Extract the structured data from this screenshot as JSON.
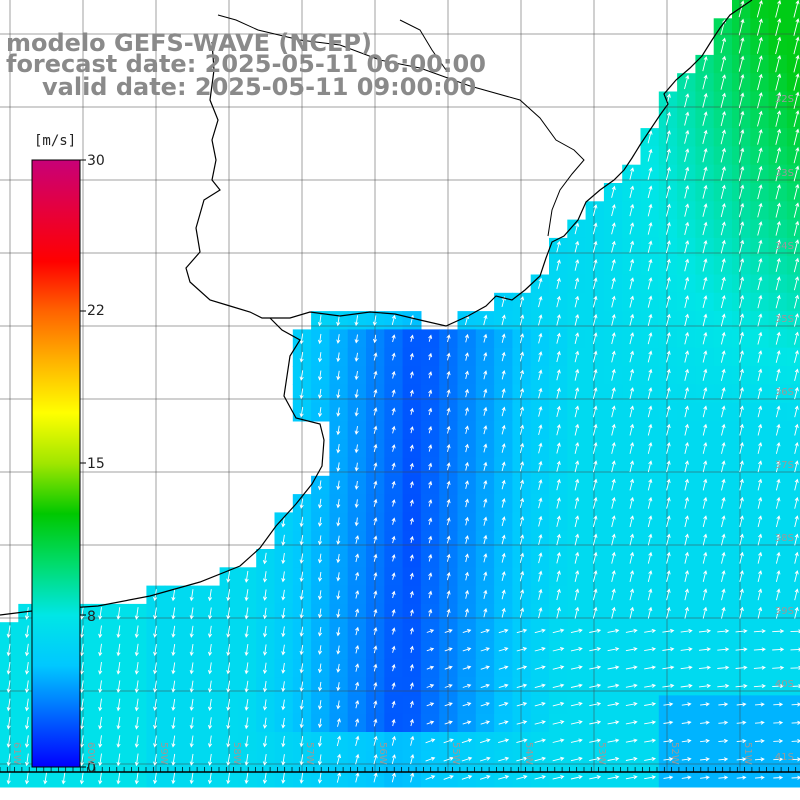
{
  "title": {
    "line1": "modelo GEFS-WAVE (NCEP)",
    "line2": "forecast date: 2025-05-11 06:00:00",
    "line3": "valid date: 2025-05-11 09:00:00"
  },
  "colorbar": {
    "unit": "[m/s]",
    "ticks": [
      "30",
      "22",
      "15",
      "8",
      "0"
    ],
    "tick_values": [
      30,
      22,
      15,
      8,
      0
    ],
    "stops": [
      "#0000ff",
      "#0064ff",
      "#00c8ff",
      "#00e6e6",
      "#00dc6e",
      "#00c800",
      "#a0e600",
      "#ffff00",
      "#ffb400",
      "#ff6400",
      "#ff0000",
      "#e6003c",
      "#c80078"
    ]
  },
  "lat_labels": [
    "32S",
    "33S",
    "34S",
    "35S",
    "36S",
    "37S",
    "38S",
    "39S",
    "40S",
    "41S"
  ],
  "lon_labels": [
    "61W",
    "60W",
    "59W",
    "58W",
    "57W",
    "56W",
    "55W",
    "54W",
    "53W",
    "52W",
    "51W"
  ],
  "chart_data": {
    "type": "heatmap",
    "variable": "wind speed",
    "unit": "m/s",
    "range": [
      0,
      30
    ],
    "region": "Rio de la Plata / southern Brazil coast",
    "typical_values": {
      "rio_de_la_plata_estuary": 2,
      "open_ocean_east": 7,
      "south_west_corner": 6
    }
  },
  "colors": {
    "land": "#ffffff",
    "coast": "#000000",
    "grid": "#444444",
    "vectors": "#ffffff",
    "title_text": "#8a8a8a"
  }
}
